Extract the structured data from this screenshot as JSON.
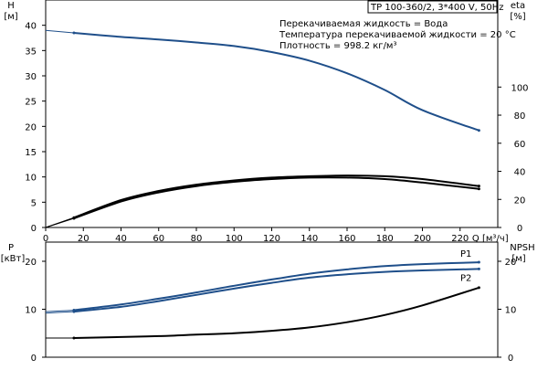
{
  "chart_data": [
    {
      "type": "line",
      "x": [
        15,
        40,
        60,
        80,
        100,
        120,
        140,
        160,
        180,
        200,
        230
      ],
      "xlabel": "Q [м³/ч]",
      "xticks": [
        0,
        20,
        40,
        60,
        80,
        100,
        120,
        140,
        160,
        180,
        200,
        220
      ],
      "xlim": [
        0,
        240
      ],
      "ylabel_left": [
        "H",
        "[м]"
      ],
      "yticks_left": [
        0,
        5,
        10,
        15,
        20,
        25,
        30,
        35,
        40
      ],
      "ylim_left": [
        0,
        45
      ],
      "ylabel_right": [
        "eta",
        "[%]"
      ],
      "yticks_right": [
        0,
        20,
        40,
        60,
        80,
        100
      ],
      "ylim_right": [
        0,
        162
      ],
      "grid": false,
      "product_label": "TP 100-360/2, 3*400 V, 50Hz",
      "annotations": [
        "Перекачиваемая жидкость = Вода",
        "Температура перекачиваемой жидкости = 20 °C",
        "Плотность = 998.2 кг/м³"
      ],
      "series": [
        {
          "axis": "left",
          "color": "#1f4f8a",
          "x": [
            0,
            15,
            40,
            60,
            80,
            100,
            120,
            140,
            160,
            180,
            200,
            230
          ],
          "values": [
            39,
            38.5,
            37.7,
            37.2,
            36.6,
            35.9,
            34.7,
            33.0,
            30.5,
            27.2,
            23.2,
            19.2
          ]
        },
        {
          "axis": "right",
          "color": "#000000",
          "x": [
            0,
            15,
            40,
            60,
            80,
            100,
            120,
            140,
            160,
            180,
            200,
            230
          ],
          "values": [
            0,
            7,
            19.5,
            26,
            30.5,
            33.5,
            35.5,
            36.5,
            37,
            36.5,
            34.5,
            29.5
          ]
        },
        {
          "axis": "right",
          "color": "#000000",
          "x": [
            0,
            15,
            40,
            60,
            80,
            100,
            120,
            140,
            160,
            180,
            200,
            230
          ],
          "values": [
            0,
            6.5,
            18.5,
            25,
            29.5,
            32.5,
            34.5,
            35.5,
            35.5,
            34.5,
            32,
            27.5
          ]
        }
      ]
    },
    {
      "type": "line",
      "x": [
        15,
        40,
        60,
        80,
        100,
        120,
        140,
        160,
        180,
        200,
        230
      ],
      "xlim": [
        0,
        240
      ],
      "ylabel_left": [
        "P",
        "[кВт]"
      ],
      "yticks_left": [
        0,
        10,
        20
      ],
      "ylim_left": [
        0,
        24
      ],
      "ylabel_right": [
        "NPSH",
        "[м]"
      ],
      "yticks_right": [
        0,
        10,
        20
      ],
      "ylim_right": [
        0,
        24
      ],
      "grid": false,
      "series": [
        {
          "name": "P1",
          "axis": "left",
          "color": "#1f4f8a",
          "x": [
            0,
            15,
            40,
            60,
            80,
            100,
            120,
            140,
            160,
            180,
            200,
            230
          ],
          "values": [
            9.5,
            9.8,
            11.0,
            12.2,
            13.5,
            14.9,
            16.2,
            17.4,
            18.3,
            19.0,
            19.4,
            19.8
          ]
        },
        {
          "name": "P2",
          "axis": "left",
          "color": "#1f4f8a",
          "x": [
            0,
            15,
            40,
            60,
            80,
            100,
            120,
            140,
            160,
            180,
            200,
            230
          ],
          "values": [
            9.2,
            9.5,
            10.5,
            11.7,
            13.0,
            14.3,
            15.5,
            16.6,
            17.3,
            17.8,
            18.1,
            18.4
          ]
        },
        {
          "axis": "right",
          "color": "#000000",
          "x": [
            0,
            15,
            40,
            60,
            80,
            100,
            120,
            140,
            160,
            180,
            200,
            230
          ],
          "values": [
            4,
            4,
            4.2,
            4.4,
            4.7,
            5.0,
            5.5,
            6.2,
            7.3,
            8.8,
            10.8,
            14.5
          ]
        }
      ]
    }
  ]
}
